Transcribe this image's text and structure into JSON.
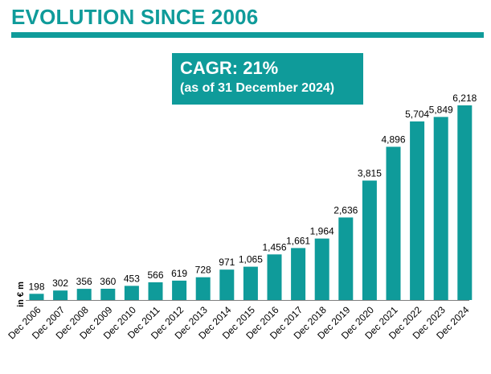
{
  "header": {
    "title": "EVOLUTION SINCE 2006"
  },
  "callout": {
    "cagr": "CAGR: 21%",
    "asof": "(as of 31 December 2024)"
  },
  "colors": {
    "accent": "#0f9b9a",
    "bar": "#0f9b9a",
    "text": "#000000"
  },
  "chart_data": {
    "type": "bar",
    "title": "EVOLUTION SINCE 2006",
    "ylabel": "in € m",
    "xlabel": "",
    "grid": false,
    "legend": "none",
    "ylim": [
      0,
      6218
    ],
    "categories": [
      "Dec 2006",
      "Dec 2007",
      "Dec 2008",
      "Dec 2009",
      "Dec 2010",
      "Dec 2011",
      "Dec 2012",
      "Dec 2013",
      "Dec 2014",
      "Dec 2015",
      "Dec 2016",
      "Dec 2017",
      "Dec 2018",
      "Dec 2019",
      "Dec 2020",
      "Dec 2021",
      "Dec 2022",
      "Dec 2023",
      "Dec 2024"
    ],
    "values": [
      198,
      302,
      356,
      360,
      453,
      566,
      619,
      728,
      971,
      1065,
      1456,
      1661,
      1964,
      2636,
      3815,
      4896,
      5704,
      5849,
      6218
    ],
    "value_labels": [
      "198",
      "302",
      "356",
      "360",
      "453",
      "566",
      "619",
      "728",
      "971",
      "1,065",
      "1,456",
      "1,661",
      "1,964",
      "2,636",
      "3,815",
      "4,896",
      "5,704",
      "5,849",
      "6,218"
    ]
  }
}
